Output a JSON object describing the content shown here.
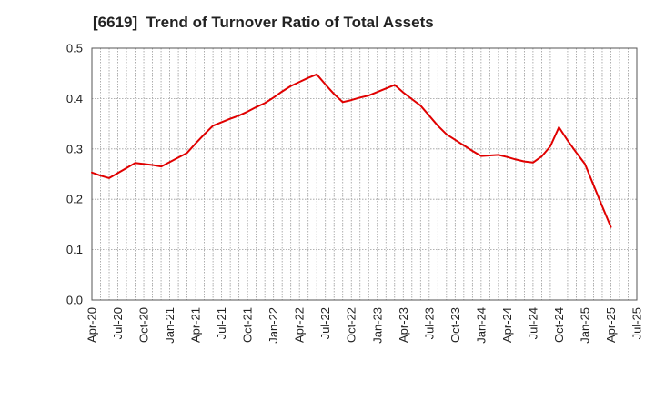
{
  "chart_data": {
    "type": "line",
    "title": "[6619]  Trend of Turnover Ratio of Total Assets",
    "xlabel": "",
    "ylabel": "",
    "ylim": [
      0,
      0.5
    ],
    "yticks": [
      "0.0",
      "0.1",
      "0.2",
      "0.3",
      "0.4",
      "0.5"
    ],
    "xtick_labels": [
      "Apr-20",
      "Jul-20",
      "Oct-20",
      "Jan-21",
      "Apr-21",
      "Jul-21",
      "Oct-21",
      "Jan-22",
      "Apr-22",
      "Jul-22",
      "Oct-22",
      "Jan-23",
      "Apr-23",
      "Jul-23",
      "Oct-23",
      "Jan-24",
      "Apr-24",
      "Jul-24",
      "Oct-24",
      "Jan-25",
      "Apr-25",
      "Jul-25"
    ],
    "grid": true,
    "line_color": "#e00000",
    "series": [
      {
        "x": [
          "Apr-20",
          "May-20",
          "Jun-20",
          "Jul-20",
          "Aug-20",
          "Sep-20",
          "Oct-20",
          "Nov-20",
          "Dec-20",
          "Jan-21",
          "Feb-21",
          "Mar-21",
          "Apr-21",
          "May-21",
          "Jun-21",
          "Jul-21",
          "Aug-21",
          "Sep-21",
          "Oct-21",
          "Nov-21",
          "Dec-21",
          "Jan-22",
          "Feb-22",
          "Mar-22",
          "Apr-22",
          "May-22",
          "Jun-22",
          "Jul-22",
          "Aug-22",
          "Sep-22",
          "Oct-22",
          "Nov-22",
          "Dec-22",
          "Jan-23",
          "Feb-23",
          "Mar-23",
          "Apr-23",
          "May-23",
          "Jun-23",
          "Jul-23",
          "Aug-23",
          "Sep-23",
          "Oct-23",
          "Nov-23",
          "Dec-23",
          "Jan-24",
          "Feb-24",
          "Mar-24",
          "Apr-24",
          "May-24",
          "Jun-24",
          "Jul-24",
          "Aug-24",
          "Sep-24",
          "Oct-24",
          "Nov-24",
          "Dec-24",
          "Jan-25",
          "Feb-25",
          "Mar-25",
          "Apr-25"
        ],
        "values": [
          0.253,
          0.247,
          0.242,
          0.252,
          0.262,
          0.272,
          0.27,
          0.268,
          0.265,
          0.274,
          0.283,
          0.292,
          0.311,
          0.329,
          0.346,
          0.353,
          0.36,
          0.366,
          0.374,
          0.383,
          0.391,
          0.402,
          0.414,
          0.425,
          0.433,
          0.441,
          0.448,
          0.428,
          0.409,
          0.393,
          0.397,
          0.402,
          0.406,
          0.413,
          0.42,
          0.427,
          0.412,
          0.399,
          0.386,
          0.366,
          0.346,
          0.329,
          0.318,
          0.307,
          0.296,
          0.286,
          0.287,
          0.288,
          0.284,
          0.279,
          0.275,
          0.273,
          0.285,
          0.305,
          0.343,
          0.317,
          0.293,
          0.27,
          0.228,
          0.186,
          0.145
        ]
      }
    ]
  }
}
